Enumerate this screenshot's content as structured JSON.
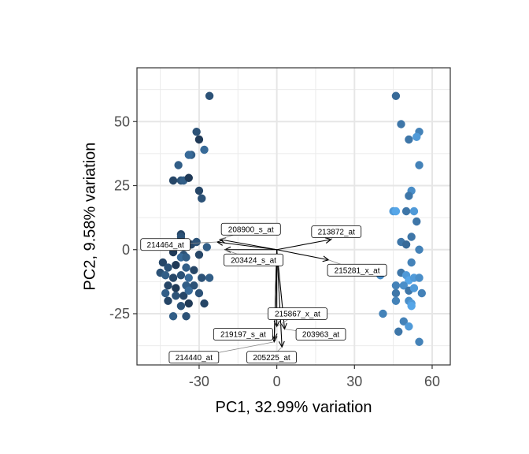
{
  "chart_data": {
    "type": "scatter",
    "title": "",
    "xlabel": "PC1, 32.99% variation",
    "ylabel": "PC2, 9.58% variation",
    "xlim": [
      -54,
      67
    ],
    "ylim": [
      -45,
      71
    ],
    "x_ticks": [
      -30,
      0,
      30,
      60
    ],
    "x_tick_labels": [
      "-30",
      "0",
      "30",
      "60"
    ],
    "y_ticks": [
      -25,
      0,
      25,
      50
    ],
    "y_tick_labels": [
      "-25",
      "0",
      "25",
      "50"
    ],
    "grid": true,
    "legend": "none",
    "color_scale": [
      "#1a2e47",
      "#56a6e8"
    ],
    "points": [
      {
        "x": -26,
        "y": 60,
        "c": 0.3
      },
      {
        "x": -31,
        "y": 46,
        "c": 0.3
      },
      {
        "x": -30,
        "y": 43,
        "c": 0.1
      },
      {
        "x": -28,
        "y": 39,
        "c": 0.5
      },
      {
        "x": -33,
        "y": 37,
        "c": 0.4
      },
      {
        "x": -34,
        "y": 37,
        "c": 0.5
      },
      {
        "x": -38,
        "y": 33,
        "c": 0.4
      },
      {
        "x": -40,
        "y": 27,
        "c": 0.2
      },
      {
        "x": -37,
        "y": 27,
        "c": 0.3
      },
      {
        "x": -36,
        "y": 27,
        "c": 0.4
      },
      {
        "x": -34,
        "y": 28,
        "c": 0.1
      },
      {
        "x": -30,
        "y": 23,
        "c": 0.2
      },
      {
        "x": -29,
        "y": 20,
        "c": 0.3
      },
      {
        "x": -37,
        "y": 6,
        "c": 0.2
      },
      {
        "x": -37,
        "y": 5,
        "c": 0.3
      },
      {
        "x": -33,
        "y": 2,
        "c": 0.2
      },
      {
        "x": -31,
        "y": 3,
        "c": 0.3
      },
      {
        "x": -27,
        "y": 1,
        "c": 0.4
      },
      {
        "x": -40,
        "y": -1,
        "c": 0.1
      },
      {
        "x": -36,
        "y": -2,
        "c": 0.3
      },
      {
        "x": -30,
        "y": -2,
        "c": 0.2
      },
      {
        "x": -37,
        "y": -3,
        "c": 0.5
      },
      {
        "x": -35,
        "y": -3,
        "c": 0.4
      },
      {
        "x": -44,
        "y": -5,
        "c": 0.2
      },
      {
        "x": -42,
        "y": -7,
        "c": 0.3
      },
      {
        "x": -39,
        "y": -6,
        "c": 0.1
      },
      {
        "x": -35,
        "y": -7,
        "c": 0.4
      },
      {
        "x": -32,
        "y": -8,
        "c": 0.2
      },
      {
        "x": -45,
        "y": -9,
        "c": 0.3
      },
      {
        "x": -43,
        "y": -10,
        "c": 0.4
      },
      {
        "x": -40,
        "y": -11,
        "c": 0.2
      },
      {
        "x": -37,
        "y": -10,
        "c": 0.3
      },
      {
        "x": -34,
        "y": -11,
        "c": 0.5
      },
      {
        "x": -29,
        "y": -11,
        "c": 0.3
      },
      {
        "x": -26,
        "y": -11,
        "c": 0.4
      },
      {
        "x": -42,
        "y": -14,
        "c": 0.2
      },
      {
        "x": -39,
        "y": -15,
        "c": 0.1
      },
      {
        "x": -35,
        "y": -14,
        "c": 0.4
      },
      {
        "x": -32,
        "y": -14,
        "c": 0.3
      },
      {
        "x": -43,
        "y": -17,
        "c": 0.4
      },
      {
        "x": -39,
        "y": -18,
        "c": 0.3
      },
      {
        "x": -36,
        "y": -18,
        "c": 0.2
      },
      {
        "x": -34,
        "y": -16,
        "c": 0.5
      },
      {
        "x": -30,
        "y": -17,
        "c": 0.3
      },
      {
        "x": -42,
        "y": -20,
        "c": 0.2
      },
      {
        "x": -37,
        "y": -22,
        "c": 0.3
      },
      {
        "x": -34,
        "y": -21,
        "c": 0.1
      },
      {
        "x": -28,
        "y": -21,
        "c": 0.2
      },
      {
        "x": -40,
        "y": -26,
        "c": 0.4
      },
      {
        "x": -35,
        "y": -26,
        "c": 0.3
      },
      {
        "x": 46,
        "y": 60,
        "c": 0.5
      },
      {
        "x": 48,
        "y": 49,
        "c": 0.6
      },
      {
        "x": 55,
        "y": 46,
        "c": 0.7
      },
      {
        "x": 51,
        "y": 43,
        "c": 0.6
      },
      {
        "x": 54,
        "y": 44,
        "c": 0.9
      },
      {
        "x": 55,
        "y": 33,
        "c": 0.7
      },
      {
        "x": 52,
        "y": 23,
        "c": 0.8
      },
      {
        "x": 51,
        "y": 21,
        "c": 0.6
      },
      {
        "x": 45,
        "y": 15,
        "c": 0.9
      },
      {
        "x": 46,
        "y": 15,
        "c": 1.0
      },
      {
        "x": 50,
        "y": 15,
        "c": 0.6
      },
      {
        "x": 53,
        "y": 15,
        "c": 0.9
      },
      {
        "x": 54,
        "y": 11,
        "c": 0.6
      },
      {
        "x": 48,
        "y": 3,
        "c": 0.6
      },
      {
        "x": 50,
        "y": 2,
        "c": 0.5
      },
      {
        "x": 52,
        "y": 5,
        "c": 0.6
      },
      {
        "x": 55,
        "y": 0,
        "c": 0.7
      },
      {
        "x": 52,
        "y": -5,
        "c": 0.7
      },
      {
        "x": 40,
        "y": -10,
        "c": 0.8
      },
      {
        "x": 48,
        "y": -9,
        "c": 0.6
      },
      {
        "x": 50,
        "y": -10,
        "c": 0.9
      },
      {
        "x": 51,
        "y": -12,
        "c": 1.0
      },
      {
        "x": 53,
        "y": -11,
        "c": 0.9
      },
      {
        "x": 55,
        "y": -11,
        "c": 0.8
      },
      {
        "x": 46,
        "y": -14,
        "c": 0.7
      },
      {
        "x": 49,
        "y": -14,
        "c": 0.8
      },
      {
        "x": 51,
        "y": -16,
        "c": 0.6
      },
      {
        "x": 53,
        "y": -15,
        "c": 0.9
      },
      {
        "x": 46,
        "y": -17,
        "c": 0.6
      },
      {
        "x": 56,
        "y": -17,
        "c": 0.7
      },
      {
        "x": 46,
        "y": -20,
        "c": 0.7
      },
      {
        "x": 51,
        "y": -20,
        "c": 0.8
      },
      {
        "x": 52,
        "y": -21,
        "c": 0.9
      },
      {
        "x": 52,
        "y": -22,
        "c": 1.0
      },
      {
        "x": 41,
        "y": -25,
        "c": 0.7
      },
      {
        "x": 49,
        "y": -28,
        "c": 0.7
      },
      {
        "x": 51,
        "y": -30,
        "c": 0.9
      },
      {
        "x": 47,
        "y": -32,
        "c": 0.6
      },
      {
        "x": 55,
        "y": -36,
        "c": 0.7
      }
    ],
    "loadings": [
      {
        "name": "208900_s_at",
        "x": -22,
        "y": 4,
        "lx": -10,
        "ly": 8
      },
      {
        "name": "213872_at",
        "x": 21,
        "y": 4,
        "lx": 23,
        "ly": 7
      },
      {
        "name": "214464_at",
        "x": -23,
        "y": 3,
        "lx": -43,
        "ly": 2
      },
      {
        "name": "203424_s_at",
        "x": -20,
        "y": 0,
        "lx": -9,
        "ly": -4
      },
      {
        "name": "215281_x_at",
        "x": 20,
        "y": -4,
        "lx": 31,
        "ly": -8
      },
      {
        "name": "215867_x_at",
        "x": 0,
        "y": -30,
        "lx": 8,
        "ly": -25
      },
      {
        "name": "219197_s_at",
        "x": -1,
        "y": -35,
        "lx": -13,
        "ly": -33
      },
      {
        "name": "203963_at",
        "x": 3,
        "y": -31,
        "lx": 17,
        "ly": -33
      },
      {
        "name": "214440_at",
        "x": -1,
        "y": -36,
        "lx": -32,
        "ly": -42
      },
      {
        "name": "205225_at",
        "x": 2,
        "y": -38,
        "lx": -2,
        "ly": -42
      }
    ]
  }
}
